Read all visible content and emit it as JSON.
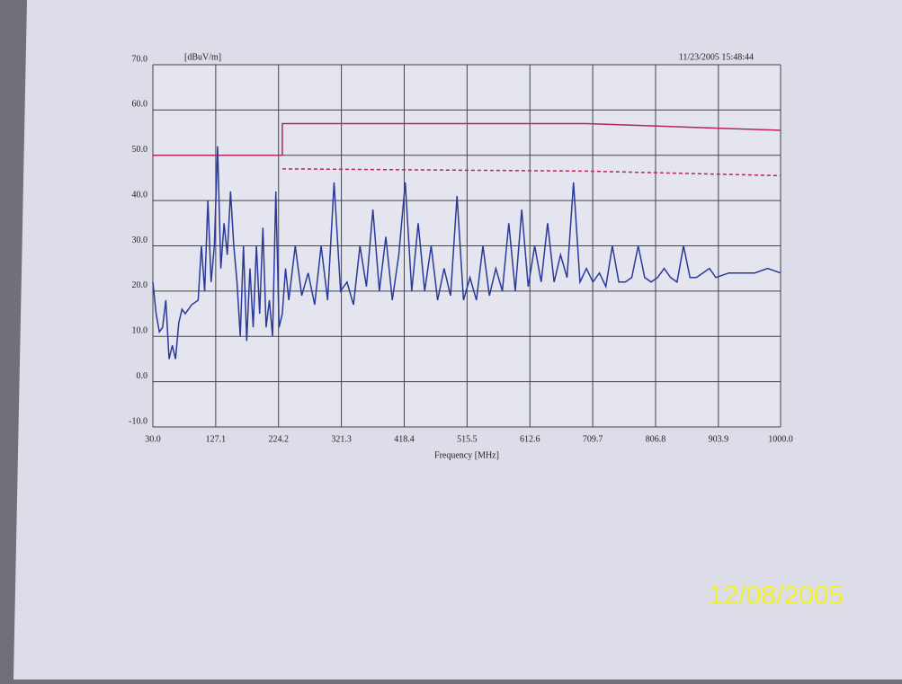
{
  "chart_data": {
    "type": "line",
    "y_unit_label": "[dBuV/m]",
    "timestamp": "11/23/2005 15:48:44",
    "x_label": "Frequency [MHz]",
    "xlim": [
      30,
      1000
    ],
    "xticks": [
      {
        "value": 30,
        "label": "30.0"
      },
      127.1,
      224.2,
      321.3,
      418.4,
      515.5,
      612.6,
      709.7,
      806.8,
      903.9,
      {
        "value": 1000,
        "label": "1000.0"
      }
    ],
    "ylim": [
      -10,
      70
    ],
    "yticks": [
      {
        "value": -10,
        "label": "-10.0"
      },
      {
        "value": 0,
        "label": "0.0"
      },
      {
        "value": 10,
        "label": "10.0"
      },
      {
        "value": 20,
        "label": "20.0"
      },
      {
        "value": 30,
        "label": "30.0"
      },
      {
        "value": 40,
        "label": "40.0"
      },
      {
        "value": 50,
        "label": "50.0"
      },
      {
        "value": 60,
        "label": "60.0"
      },
      {
        "value": 70,
        "label": "70.0"
      }
    ],
    "grid": true,
    "series": [
      {
        "color": "#b8245c",
        "line_style": "solid",
        "x": [
          30,
          230,
          230,
          700,
          1000
        ],
        "values": [
          50,
          50,
          57,
          57,
          55.5
        ]
      },
      {
        "color": "#b8245c",
        "line_style": "dashed",
        "x": [
          230,
          700,
          1000
        ],
        "values": [
          47,
          46.5,
          45.5
        ]
      },
      {
        "color": "#2a3a9a",
        "line_style": "solid",
        "x": [
          30,
          35,
          40,
          45,
          50,
          55,
          60,
          65,
          70,
          75,
          80,
          90,
          100,
          105,
          110,
          115,
          120,
          125,
          130,
          135,
          140,
          145,
          150,
          155,
          160,
          165,
          170,
          175,
          180,
          185,
          190,
          195,
          200,
          205,
          210,
          215,
          220,
          225,
          230,
          235,
          240,
          250,
          260,
          270,
          280,
          290,
          300,
          310,
          320,
          330,
          340,
          350,
          360,
          370,
          380,
          390,
          400,
          410,
          420,
          430,
          440,
          450,
          460,
          470,
          480,
          490,
          500,
          510,
          520,
          530,
          540,
          550,
          560,
          570,
          580,
          590,
          600,
          610,
          620,
          630,
          640,
          650,
          660,
          670,
          680,
          690,
          700,
          710,
          720,
          730,
          740,
          750,
          760,
          770,
          780,
          790,
          800,
          810,
          820,
          830,
          840,
          850,
          860,
          870,
          880,
          890,
          900,
          920,
          940,
          960,
          980,
          1000
        ],
        "values": [
          22,
          15,
          11,
          12,
          18,
          5,
          8,
          5,
          13,
          16,
          15,
          17,
          18,
          30,
          20,
          40,
          22,
          30,
          52,
          25,
          35,
          28,
          42,
          30,
          22,
          10,
          30,
          9,
          25,
          12,
          30,
          15,
          34,
          12,
          18,
          10,
          42,
          12,
          15,
          25,
          18,
          30,
          19,
          24,
          17,
          30,
          18,
          44,
          20,
          22,
          17,
          30,
          21,
          38,
          20,
          32,
          18,
          28,
          44,
          20,
          35,
          20,
          30,
          18,
          25,
          19,
          41,
          18,
          23,
          18,
          30,
          19,
          25,
          20,
          35,
          20,
          38,
          21,
          30,
          22,
          35,
          22,
          28,
          23,
          44,
          22,
          25,
          22,
          24,
          21,
          30,
          22,
          22,
          23,
          30,
          23,
          22,
          23,
          25,
          23,
          22,
          30,
          23,
          23,
          24,
          25,
          23,
          24,
          24,
          24,
          25,
          24
        ]
      }
    ]
  },
  "photo_stamp": "12/08/2005"
}
